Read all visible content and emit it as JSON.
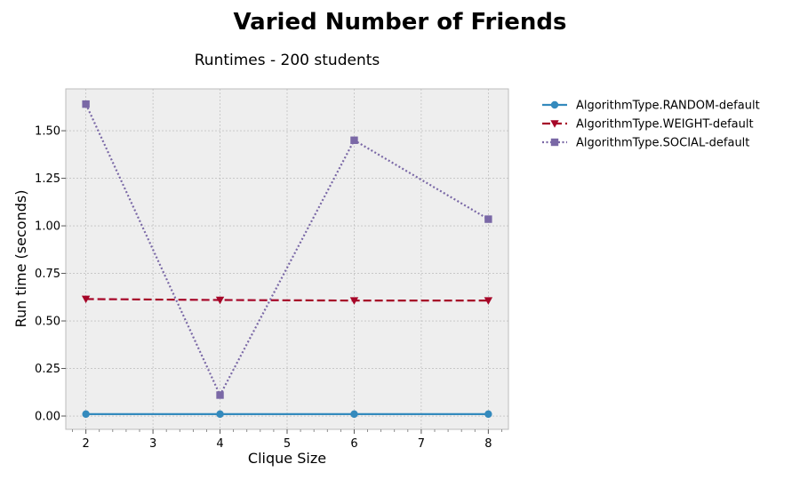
{
  "figure": {
    "title": "Varied Number of Friends"
  },
  "chart_data": {
    "type": "line",
    "title": "Runtimes - 200 students",
    "xlabel": "Clique Size",
    "ylabel": "Run time (seconds)",
    "x": [
      2,
      4,
      6,
      8
    ],
    "xlim": [
      1.7,
      8.3
    ],
    "ylim": [
      -0.07,
      1.72
    ],
    "xticks": [
      2,
      3,
      4,
      5,
      6,
      7,
      8
    ],
    "xtick_labels": [
      "2",
      "3",
      "4",
      "5",
      "6",
      "7",
      "8"
    ],
    "yticks": [
      0.0,
      0.25,
      0.5,
      0.75,
      1.0,
      1.25,
      1.5
    ],
    "ytick_labels": [
      "0.00",
      "0.25",
      "0.50",
      "0.75",
      "1.00",
      "1.25",
      "1.50"
    ],
    "grid": true,
    "legend_position": "outside-right",
    "background": "#eeeeee",
    "series": [
      {
        "name": "AlgorithmType.RANDOM-default",
        "values": [
          0.01,
          0.01,
          0.01,
          0.01
        ],
        "color": "#348abd",
        "linestyle": "solid",
        "marker": "circle"
      },
      {
        "name": "AlgorithmType.WEIGHT-default",
        "values": [
          0.615,
          0.61,
          0.607,
          0.607
        ],
        "color": "#a60628",
        "linestyle": "dashed",
        "marker": "triangle-down"
      },
      {
        "name": "AlgorithmType.SOCIAL-default",
        "values": [
          1.64,
          0.11,
          1.45,
          1.035
        ],
        "color": "#7a68a6",
        "linestyle": "dotted",
        "marker": "square"
      }
    ]
  }
}
